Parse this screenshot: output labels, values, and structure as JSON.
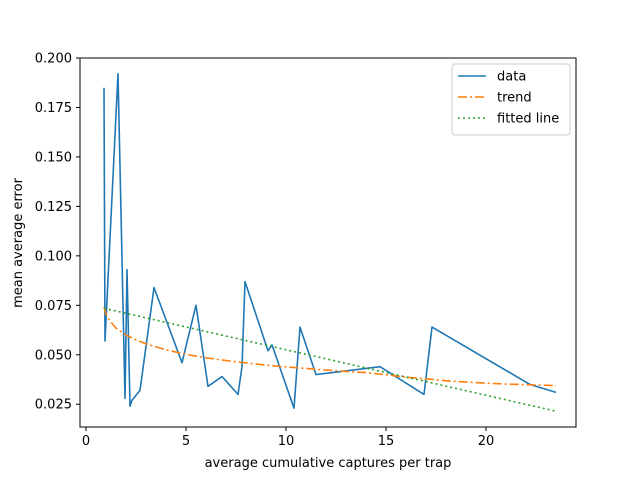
{
  "chart_data": {
    "type": "line",
    "xlabel": "average cumulative captures per trap",
    "ylabel": "mean average error",
    "xlim": [
      -0.3,
      24.5
    ],
    "ylim": [
      0.0135,
      0.2
    ],
    "xticks": [
      0,
      5,
      10,
      15,
      20
    ],
    "xtick_labels": [
      "0",
      "5",
      "10",
      "15",
      "20"
    ],
    "yticks": [
      0.025,
      0.05,
      0.075,
      0.1,
      0.125,
      0.15,
      0.175,
      0.2
    ],
    "ytick_labels": [
      "0.025",
      "0.050",
      "0.075",
      "0.100",
      "0.125",
      "0.150",
      "0.175",
      "0.200"
    ],
    "grid": false,
    "legend_position": "top-right",
    "colors": {
      "data": "#1f77b4",
      "trend": "#ff7f0e",
      "fitted": "#2ca02c"
    },
    "series": [
      {
        "key": "data",
        "name": "data",
        "style": "solid",
        "x": [
          0.9,
          0.95,
          1.6,
          1.95,
          2.05,
          2.2,
          2.3,
          2.7,
          3.4,
          4.8,
          5.5,
          6.1,
          6.8,
          7.6,
          7.8,
          7.95,
          9.1,
          9.3,
          10.4,
          10.7,
          11.5,
          14.7,
          16.9,
          17.3,
          22.2,
          23.5
        ],
        "y": [
          0.185,
          0.057,
          0.192,
          0.028,
          0.093,
          0.024,
          0.027,
          0.032,
          0.084,
          0.046,
          0.075,
          0.034,
          0.039,
          0.03,
          0.044,
          0.087,
          0.052,
          0.055,
          0.023,
          0.064,
          0.04,
          0.044,
          0.03,
          0.064,
          0.035,
          0.031
        ]
      },
      {
        "key": "trend",
        "name": "trend",
        "style": "dashdot",
        "x": [
          0.9,
          1.0,
          1.2,
          1.5,
          2.0,
          2.5,
          3.0,
          4.0,
          5.0,
          6.0,
          7.0,
          8.0,
          9.0,
          10.0,
          11.0,
          12.0,
          13.0,
          14.0,
          15.0,
          16.0,
          17.0,
          18.0,
          19.0,
          20.0,
          21.0,
          22.0,
          23.0,
          23.5
        ],
        "y": [
          0.074,
          0.0705,
          0.067,
          0.0635,
          0.06,
          0.0575,
          0.0555,
          0.0525,
          0.0502,
          0.0485,
          0.0471,
          0.0459,
          0.0448,
          0.0439,
          0.0431,
          0.0423,
          0.0416,
          0.041,
          0.0399,
          0.0387,
          0.0378,
          0.0369,
          0.0362,
          0.0357,
          0.0352,
          0.0349,
          0.0346,
          0.0345
        ]
      },
      {
        "key": "fitted",
        "name": "fitted line",
        "style": "dotted",
        "x": [
          0.9,
          23.5
        ],
        "y": [
          0.0735,
          0.0215
        ]
      }
    ]
  }
}
